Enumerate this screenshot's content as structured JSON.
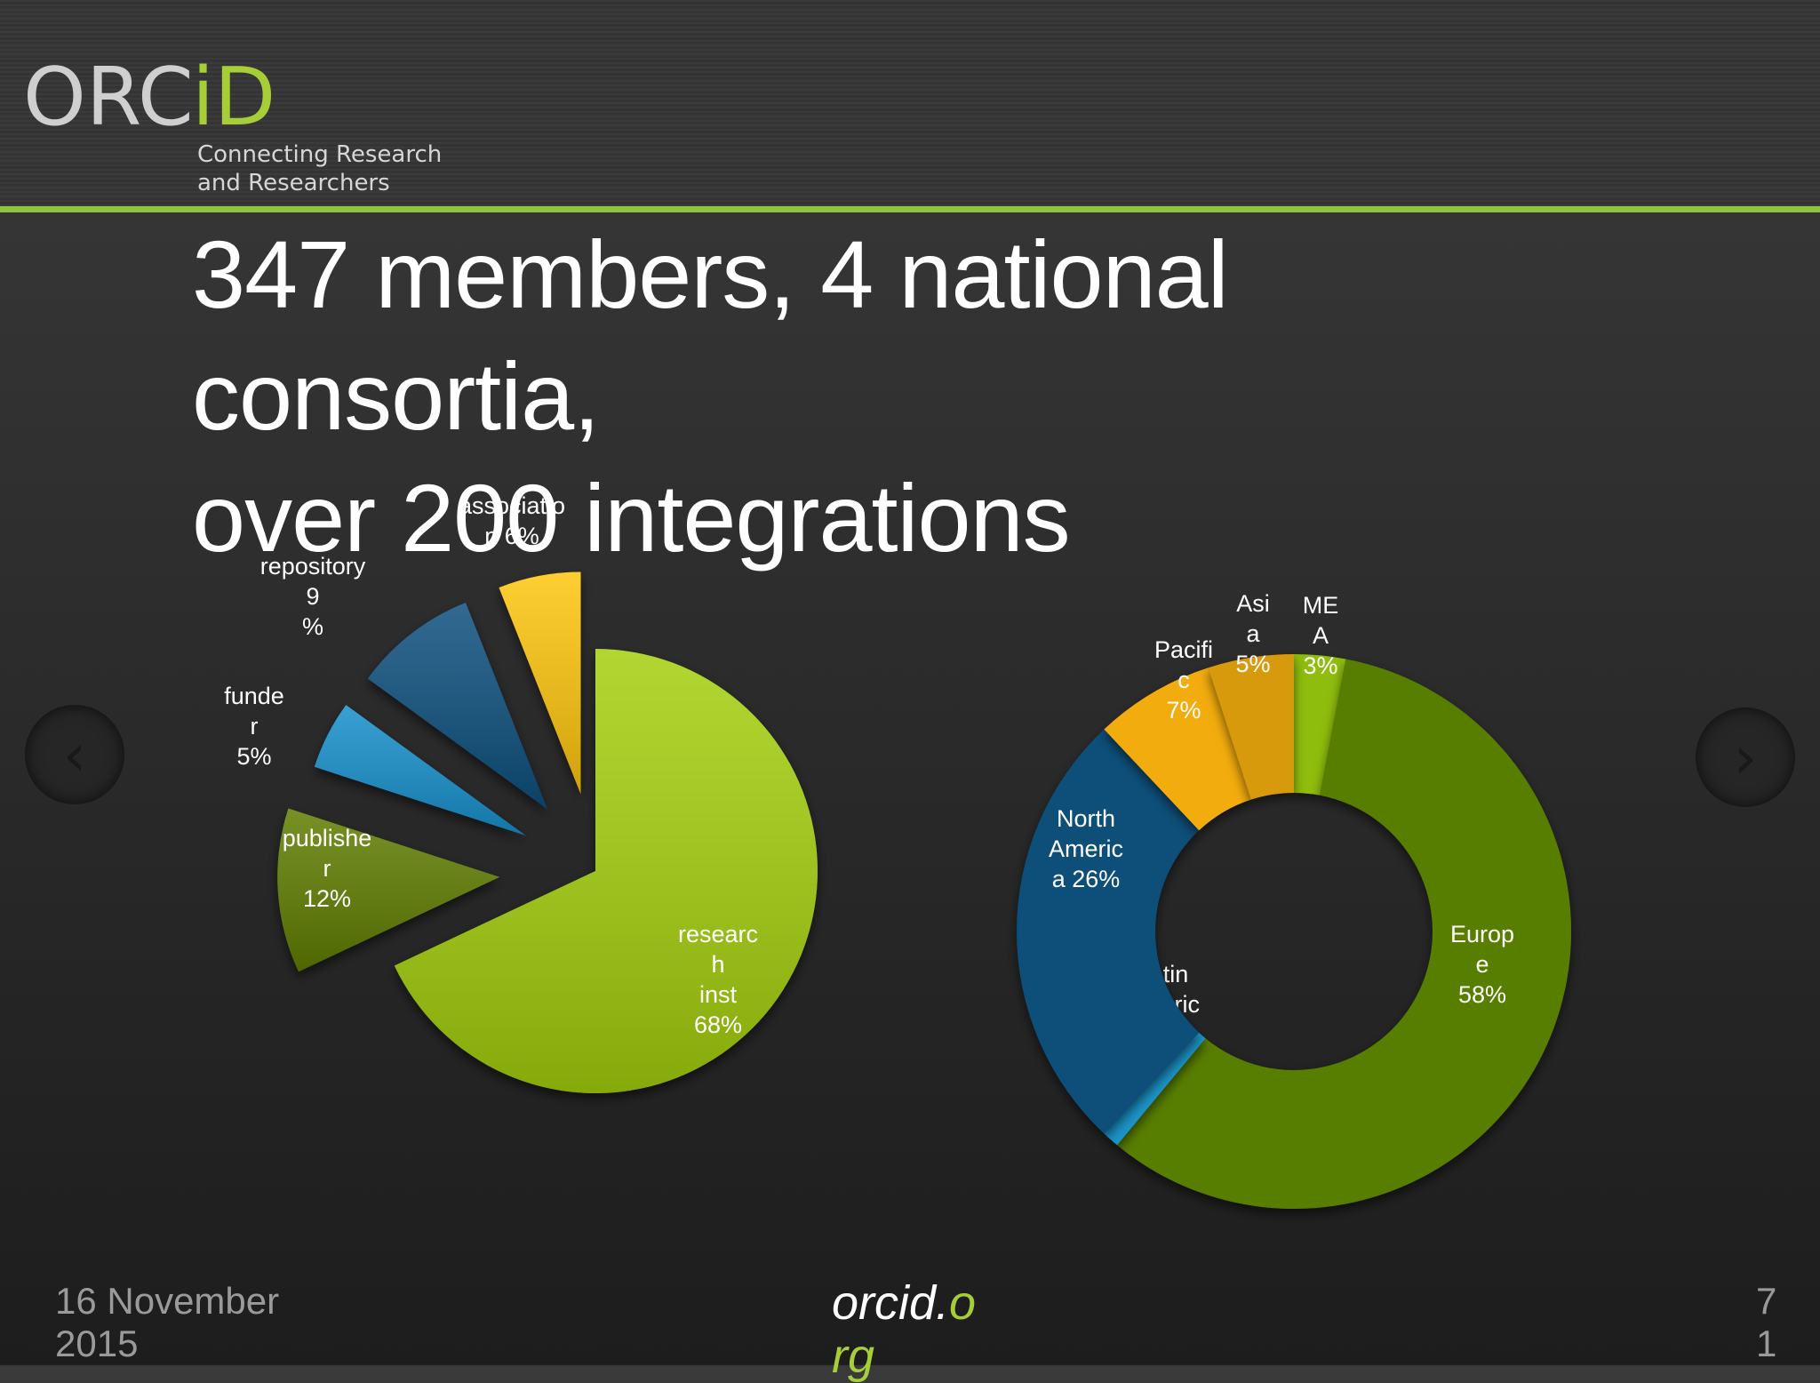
{
  "brand": {
    "logo_text_left": "ORC",
    "logo_text_right": "iD",
    "tagline": "Connecting Research\nand Researchers",
    "colors": {
      "accent": "#a6ce39",
      "accent_dark": "#8cc63f"
    }
  },
  "slide": {
    "title": "347 members, 4 national\nconsortia,\nover 200 integrations"
  },
  "chart_data": [
    {
      "type": "pie",
      "slices": [
        {
          "label": "researc\nh\ninst\n68%",
          "value": 68,
          "color": "#a4cf0c"
        },
        {
          "label": "publishe\nr\n12%",
          "value": 12,
          "color": "#5f7d06"
        },
        {
          "label": "funde\nr\n5%",
          "value": 5,
          "color": "#168fcb"
        },
        {
          "label": "repository\n9\n%",
          "value": 9,
          "color": "#0b4f7d"
        },
        {
          "label": "associatio\nn 6%",
          "value": 6,
          "color": "#fdc50a"
        }
      ]
    },
    {
      "type": "pie",
      "donut": true,
      "slices": [
        {
          "label": "ME\nA\n3%",
          "value": 3,
          "color": "#8fbd0b"
        },
        {
          "label": "Europ\ne\n58%",
          "value": 58,
          "color": "#587e05"
        },
        {
          "label": "Latin\nAmeric\na  1%",
          "value": 1,
          "color": "#1a93c7"
        },
        {
          "label": "North\nAmeric\na  26%",
          "value": 26,
          "color": "#0a4f79"
        },
        {
          "label": "Pacifi\nc\n7%",
          "value": 7,
          "color": "#f3ac0b"
        },
        {
          "label": "Asi\na\n5%",
          "value": 5,
          "color": "#d89a09"
        }
      ]
    }
  ],
  "nav": {
    "prev_icon": "chevron-left-icon",
    "next_icon": "chevron-right-icon"
  },
  "footer": {
    "date": "16 November\n2015",
    "url_part1": "orcid.",
    "url_part2": "o",
    "url_line2": "rg",
    "page": "7\n1"
  }
}
